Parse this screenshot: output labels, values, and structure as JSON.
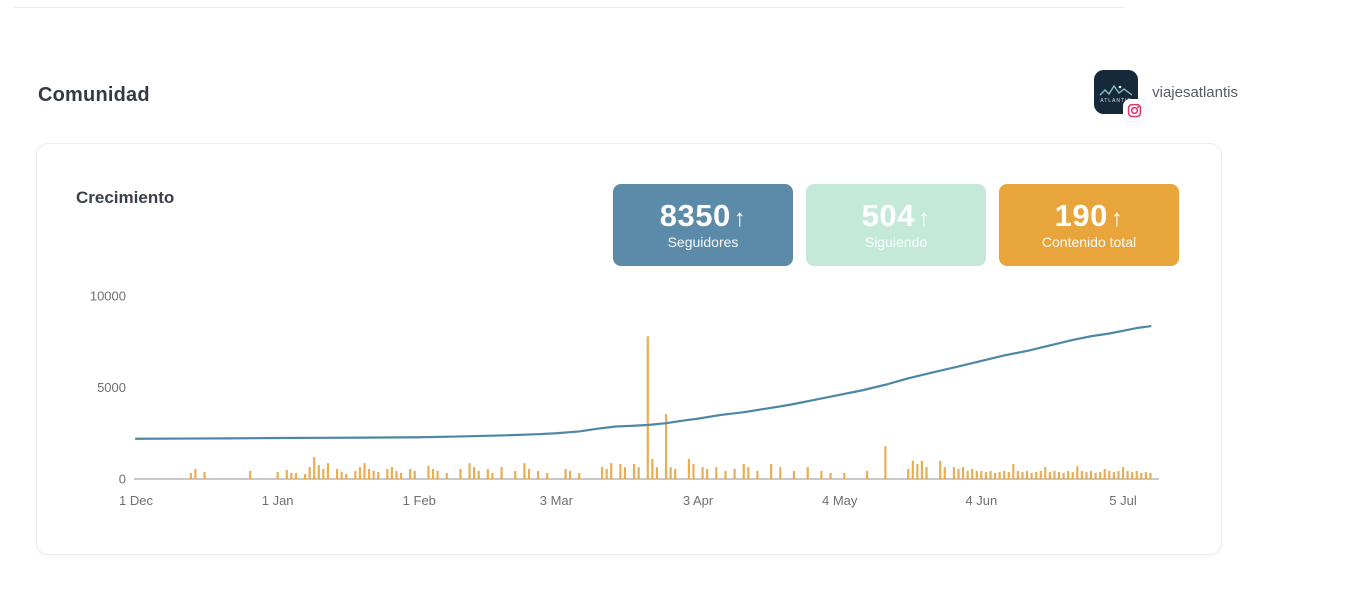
{
  "page": {
    "title": "Comunidad"
  },
  "account": {
    "name": "viajesatlantis",
    "platform_icon": "instagram",
    "avatar_alt": "atlantis-logo"
  },
  "card": {
    "title": "Crecimiento"
  },
  "stats": [
    {
      "value": "8350",
      "arrow": "↑",
      "label": "Seguidores",
      "color": "#5b8ba8",
      "text_color": "#ffffff"
    },
    {
      "value": "504",
      "arrow": "↑",
      "label": "Siguiendo",
      "color": "#c4e9d8",
      "text_color": "#ffffff"
    },
    {
      "value": "190",
      "arrow": "↑",
      "label": "Contenido total",
      "color": "#e7a53c",
      "text_color": "#ffffff"
    }
  ],
  "chart_data": {
    "type": "line+bar",
    "title": "Crecimiento",
    "ylim": [
      0,
      10000
    ],
    "y_ticks": [
      0,
      5000,
      10000
    ],
    "x_ticks": [
      {
        "day": 0,
        "label": "1 Dec"
      },
      {
        "day": 31,
        "label": "1 Jan"
      },
      {
        "day": 62,
        "label": "1 Feb"
      },
      {
        "day": 92,
        "label": "3 Mar"
      },
      {
        "day": 123,
        "label": "3 Apr"
      },
      {
        "day": 154,
        "label": "4 May"
      },
      {
        "day": 185,
        "label": "4 Jun"
      },
      {
        "day": 216,
        "label": "5 Jul"
      }
    ],
    "x_span_days": 223,
    "axis_color": "#c9c9c9",
    "label_color": "#6f6f6f",
    "legend": "none",
    "grid": false,
    "line_series": {
      "name": "Seguidores",
      "color": "#4d87a5",
      "points": [
        [
          0,
          2200
        ],
        [
          10,
          2210
        ],
        [
          20,
          2220
        ],
        [
          31,
          2240
        ],
        [
          40,
          2250
        ],
        [
          50,
          2260
        ],
        [
          62,
          2280
        ],
        [
          70,
          2320
        ],
        [
          80,
          2380
        ],
        [
          88,
          2450
        ],
        [
          92,
          2500
        ],
        [
          97,
          2600
        ],
        [
          101,
          2750
        ],
        [
          105,
          2870
        ],
        [
          108,
          2900
        ],
        [
          112,
          2950
        ],
        [
          116,
          3050
        ],
        [
          120,
          3200
        ],
        [
          123,
          3300
        ],
        [
          128,
          3500
        ],
        [
          133,
          3650
        ],
        [
          138,
          3850
        ],
        [
          143,
          4050
        ],
        [
          148,
          4300
        ],
        [
          154,
          4600
        ],
        [
          159,
          4850
        ],
        [
          164,
          5150
        ],
        [
          169,
          5500
        ],
        [
          174,
          5800
        ],
        [
          180,
          6150
        ],
        [
          185,
          6450
        ],
        [
          190,
          6750
        ],
        [
          195,
          7000
        ],
        [
          200,
          7300
        ],
        [
          205,
          7600
        ],
        [
          209,
          7800
        ],
        [
          213,
          7950
        ],
        [
          216,
          8100
        ],
        [
          219,
          8250
        ],
        [
          222,
          8350
        ]
      ]
    },
    "bar_series": {
      "name": "Contenido",
      "color": "#e8a43e",
      "unit_note": "heights read against left axis scale, no dedicated axis shown",
      "points": [
        [
          12,
          330
        ],
        [
          13,
          550
        ],
        [
          15,
          380
        ],
        [
          25,
          440
        ],
        [
          31,
          380
        ],
        [
          33,
          490
        ],
        [
          34,
          330
        ],
        [
          35,
          330
        ],
        [
          37,
          270
        ],
        [
          38,
          650
        ],
        [
          39,
          1200
        ],
        [
          40,
          760
        ],
        [
          41,
          550
        ],
        [
          42,
          870
        ],
        [
          44,
          550
        ],
        [
          45,
          380
        ],
        [
          46,
          270
        ],
        [
          48,
          440
        ],
        [
          49,
          650
        ],
        [
          50,
          870
        ],
        [
          51,
          550
        ],
        [
          52,
          440
        ],
        [
          53,
          380
        ],
        [
          55,
          550
        ],
        [
          56,
          650
        ],
        [
          57,
          440
        ],
        [
          58,
          330
        ],
        [
          60,
          550
        ],
        [
          61,
          440
        ],
        [
          64,
          710
        ],
        [
          65,
          550
        ],
        [
          66,
          440
        ],
        [
          68,
          330
        ],
        [
          71,
          550
        ],
        [
          73,
          870
        ],
        [
          74,
          650
        ],
        [
          75,
          440
        ],
        [
          77,
          550
        ],
        [
          78,
          330
        ],
        [
          80,
          650
        ],
        [
          83,
          440
        ],
        [
          85,
          870
        ],
        [
          86,
          550
        ],
        [
          88,
          440
        ],
        [
          90,
          330
        ],
        [
          94,
          550
        ],
        [
          95,
          440
        ],
        [
          97,
          330
        ],
        [
          102,
          650
        ],
        [
          103,
          550
        ],
        [
          104,
          870
        ],
        [
          106,
          820
        ],
        [
          107,
          650
        ],
        [
          109,
          820
        ],
        [
          110,
          650
        ],
        [
          112,
          7800
        ],
        [
          113,
          1100
        ],
        [
          114,
          650
        ],
        [
          116,
          3550
        ],
        [
          117,
          650
        ],
        [
          118,
          550
        ],
        [
          121,
          1100
        ],
        [
          122,
          820
        ],
        [
          124,
          650
        ],
        [
          125,
          550
        ],
        [
          127,
          650
        ],
        [
          129,
          440
        ],
        [
          131,
          550
        ],
        [
          133,
          820
        ],
        [
          134,
          650
        ],
        [
          136,
          440
        ],
        [
          139,
          820
        ],
        [
          141,
          650
        ],
        [
          144,
          440
        ],
        [
          147,
          650
        ],
        [
          150,
          440
        ],
        [
          152,
          330
        ],
        [
          155,
          330
        ],
        [
          160,
          440
        ],
        [
          164,
          1800
        ],
        [
          169,
          550
        ],
        [
          170,
          1000
        ],
        [
          171,
          820
        ],
        [
          172,
          1000
        ],
        [
          173,
          650
        ],
        [
          176,
          1000
        ],
        [
          177,
          650
        ],
        [
          179,
          650
        ],
        [
          180,
          550
        ],
        [
          181,
          650
        ],
        [
          182,
          440
        ],
        [
          183,
          550
        ],
        [
          184,
          440
        ],
        [
          185,
          440
        ],
        [
          186,
          380
        ],
        [
          187,
          440
        ],
        [
          188,
          330
        ],
        [
          189,
          380
        ],
        [
          190,
          440
        ],
        [
          191,
          380
        ],
        [
          192,
          820
        ],
        [
          193,
          440
        ],
        [
          194,
          380
        ],
        [
          195,
          440
        ],
        [
          196,
          330
        ],
        [
          197,
          380
        ],
        [
          198,
          440
        ],
        [
          199,
          650
        ],
        [
          200,
          380
        ],
        [
          201,
          440
        ],
        [
          202,
          380
        ],
        [
          203,
          330
        ],
        [
          204,
          440
        ],
        [
          205,
          380
        ],
        [
          206,
          700
        ],
        [
          207,
          440
        ],
        [
          208,
          380
        ],
        [
          209,
          440
        ],
        [
          210,
          330
        ],
        [
          211,
          380
        ],
        [
          212,
          550
        ],
        [
          213,
          440
        ],
        [
          214,
          380
        ],
        [
          215,
          440
        ],
        [
          216,
          650
        ],
        [
          217,
          440
        ],
        [
          218,
          380
        ],
        [
          219,
          440
        ],
        [
          220,
          330
        ],
        [
          221,
          380
        ],
        [
          222,
          330
        ]
      ]
    }
  }
}
